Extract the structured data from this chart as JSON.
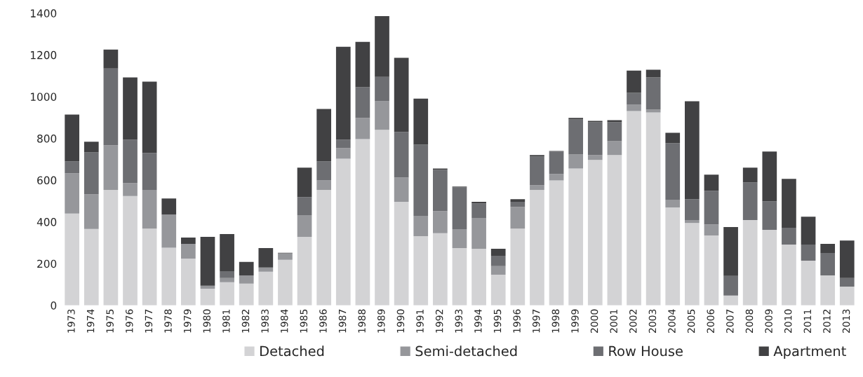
{
  "chart_data": {
    "type": "bar",
    "stacked": true,
    "categories": [
      "1973",
      "1974",
      "1975",
      "1976",
      "1977",
      "1978",
      "1979",
      "1980",
      "1981",
      "1982",
      "1983",
      "1984",
      "1985",
      "1986",
      "1987",
      "1988",
      "1989",
      "1990",
      "1991",
      "1992",
      "1993",
      "1994",
      "1995",
      "1996",
      "1997",
      "1998",
      "1999",
      "2000",
      "2001",
      "2002",
      "2003",
      "2004",
      "2005",
      "2006",
      "2007",
      "2008",
      "2009",
      "2010",
      "2011",
      "2012",
      "2013"
    ],
    "series": [
      {
        "name": "Detached",
        "color": "#d3d3d5",
        "values": [
          440,
          366,
          553,
          524,
          368,
          276,
          224,
          80,
          111,
          104,
          161,
          218,
          328,
          553,
          703,
          797,
          841,
          496,
          332,
          346,
          275,
          271,
          147,
          368,
          553,
          599,
          656,
          697,
          720,
          931,
          924,
          469,
          395,
          335,
          47,
          409,
          362,
          291,
          214,
          144,
          90
        ]
      },
      {
        "name": "Semi-detached",
        "color": "#96979b",
        "values": [
          193,
          166,
          214,
          62,
          185,
          159,
          71,
          14,
          20,
          40,
          20,
          31,
          104,
          46,
          51,
          101,
          137,
          117,
          97,
          106,
          90,
          148,
          41,
          104,
          23,
          31,
          67,
          23,
          67,
          30,
          14,
          37,
          14,
          53,
          0,
          0,
          0,
          0,
          0,
          0,
          0
        ]
      },
      {
        "name": "Row House",
        "color": "#6d6e72",
        "values": [
          57,
          201,
          368,
          208,
          177,
          0,
          0,
          0,
          33,
          0,
          0,
          0,
          87,
          91,
          40,
          147,
          117,
          218,
          341,
          198,
          201,
          70,
          50,
          24,
          137,
          107,
          168,
          157,
          90,
          57,
          154,
          271,
          100,
          161,
          94,
          180,
          137,
          81,
          77,
          107,
          41
        ]
      },
      {
        "name": "Apartment",
        "color": "#414143",
        "values": [
          224,
          51,
          91,
          298,
          342,
          77,
          30,
          234,
          178,
          64,
          94,
          3,
          141,
          251,
          445,
          218,
          291,
          355,
          221,
          6,
          3,
          7,
          33,
          13,
          7,
          3,
          7,
          7,
          10,
          107,
          37,
          50,
          469,
          77,
          234,
          71,
          238,
          234,
          134,
          44,
          180
        ]
      }
    ],
    "ylim": [
      0,
      1400
    ],
    "yticks": [
      0,
      200,
      400,
      600,
      800,
      1000,
      1200,
      1400
    ],
    "grid": false,
    "legend": "bottom"
  }
}
